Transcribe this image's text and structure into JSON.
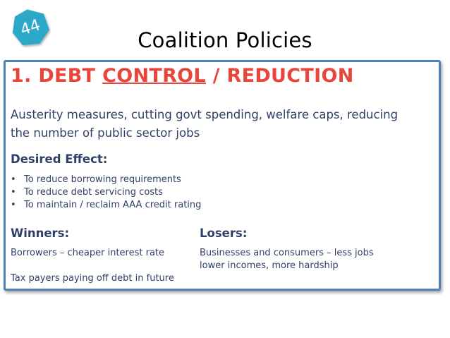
{
  "slide": {
    "number": "44",
    "title": "Coalition Policies",
    "badge_color": "#2fa8c8"
  },
  "heading": {
    "prefix": "1. DEBT ",
    "underlined": "CONTROL",
    "suffix": " / REDUCTION",
    "color": "#e8463a"
  },
  "description": {
    "line1": "Austerity measures, cutting govt spending, welfare caps, reducing",
    "line2": "the number of public sector jobs"
  },
  "desired_effect": {
    "label": "Desired Effect:",
    "items": [
      "To reduce borrowing requirements",
      "To reduce debt servicing costs",
      "To maintain / reclaim AAA credit rating"
    ]
  },
  "winners": {
    "label": "Winners:",
    "line1": "Borrowers – cheaper interest rate",
    "line2": "Tax payers paying off debt in future"
  },
  "losers": {
    "label": "Losers:",
    "line1": "Businesses and consumers – less jobs",
    "line2": "lower incomes, more hardship"
  },
  "colors": {
    "box_border": "#4f81bd",
    "body_text": "#2f3f66"
  }
}
